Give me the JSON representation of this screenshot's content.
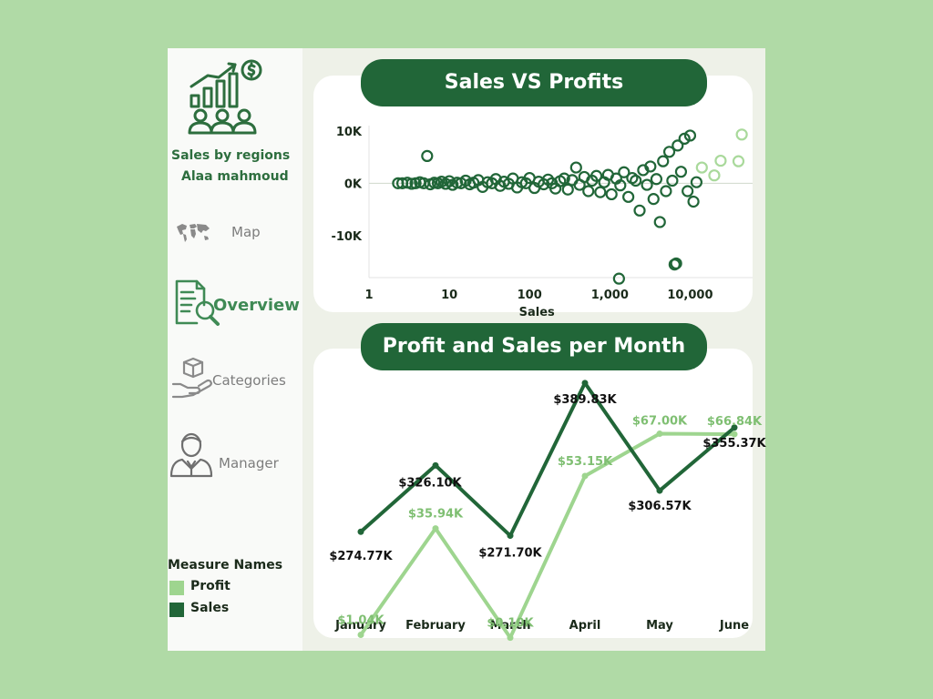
{
  "sidebar": {
    "subtitle": "Sales by regions",
    "author": "Alaa mahmoud",
    "nav": [
      {
        "id": "map",
        "label": "Map",
        "icon": "world-map-icon",
        "active": false
      },
      {
        "id": "overview",
        "label": "Overview",
        "icon": "document-magnifier-icon",
        "active": true
      },
      {
        "id": "categories",
        "label": "Categories",
        "icon": "box-hand-icon",
        "active": false
      },
      {
        "id": "manager",
        "label": "Manager",
        "icon": "person-suit-icon",
        "active": false
      }
    ],
    "legend": {
      "title": "Measure Names",
      "items": [
        {
          "label": "Profit",
          "color": "#9ed58f"
        },
        {
          "label": "Sales",
          "color": "#216638"
        }
      ]
    }
  },
  "colors": {
    "accent": "#216638",
    "profit": "#9ed58f",
    "sales": "#216638",
    "active_nav": "#3f8a55",
    "inactive_nav": "#7d7d7d"
  },
  "scatter": {
    "title": "Sales VS Profits"
  },
  "monthly": {
    "title": "Profit and Sales per Month"
  },
  "chart_data": [
    {
      "type": "scatter",
      "title": "Sales VS Profits",
      "xlabel": "Sales",
      "ylabel": "",
      "x_scale": "log",
      "xlim": [
        1,
        60000
      ],
      "ylim": [
        -18000,
        11000
      ],
      "x_ticks": [
        1,
        10,
        100,
        1000,
        10000
      ],
      "x_tick_labels": [
        "1",
        "10",
        "100",
        "1,000",
        "10,000"
      ],
      "y_ticks": [
        10000,
        0,
        -10000
      ],
      "y_tick_labels": [
        "10K",
        "0K",
        "-10K"
      ],
      "zero_line": true,
      "series": [
        {
          "color": "#216638",
          "points": [
            [
              2.3,
              0
            ],
            [
              2.6,
              0
            ],
            [
              3,
              100
            ],
            [
              3.4,
              -100
            ],
            [
              3.8,
              0
            ],
            [
              4.3,
              200
            ],
            [
              4.8,
              0
            ],
            [
              5.3,
              5200
            ],
            [
              5.8,
              -200
            ],
            [
              6.5,
              100
            ],
            [
              7.2,
              0
            ],
            [
              8,
              300
            ],
            [
              9,
              -100
            ],
            [
              10,
              400
            ],
            [
              11,
              -300
            ],
            [
              12.5,
              100
            ],
            [
              14,
              0
            ],
            [
              16,
              500
            ],
            [
              18,
              -200
            ],
            [
              20,
              100
            ],
            [
              23,
              600
            ],
            [
              26,
              -700
            ],
            [
              30,
              200
            ],
            [
              34,
              0
            ],
            [
              38,
              800
            ],
            [
              43,
              -500
            ],
            [
              48,
              300
            ],
            [
              55,
              -100
            ],
            [
              62,
              900
            ],
            [
              70,
              -800
            ],
            [
              80,
              200
            ],
            [
              90,
              0
            ],
            [
              100,
              1000
            ],
            [
              115,
              -900
            ],
            [
              130,
              300
            ],
            [
              150,
              -200
            ],
            [
              170,
              700
            ],
            [
              190,
              0
            ],
            [
              210,
              -1000
            ],
            [
              240,
              400
            ],
            [
              270,
              900
            ],
            [
              300,
              -1200
            ],
            [
              340,
              600
            ],
            [
              380,
              3000
            ],
            [
              420,
              -300
            ],
            [
              480,
              1200
            ],
            [
              540,
              -1500
            ],
            [
              600,
              500
            ],
            [
              680,
              1400
            ],
            [
              760,
              -1700
            ],
            [
              850,
              200
            ],
            [
              950,
              1600
            ],
            [
              1050,
              -2100
            ],
            [
              1200,
              900
            ],
            [
              1350,
              -400
            ],
            [
              1500,
              2100
            ],
            [
              1700,
              -2600
            ],
            [
              1900,
              1000
            ],
            [
              2100,
              500
            ],
            [
              2350,
              -5200
            ],
            [
              2600,
              2500
            ],
            [
              2900,
              -300
            ],
            [
              3200,
              3200
            ],
            [
              3500,
              -3000
            ],
            [
              3800,
              800
            ],
            [
              4200,
              -7400
            ],
            [
              4600,
              4200
            ],
            [
              5000,
              -1500
            ],
            [
              5500,
              6000
            ],
            [
              6000,
              500
            ],
            [
              6400,
              -15500
            ],
            [
              6700,
              -15300
            ],
            [
              7000,
              7200
            ],
            [
              7700,
              2200
            ],
            [
              8500,
              8500
            ],
            [
              9300,
              -1500
            ],
            [
              10000,
              9100
            ],
            [
              11000,
              -3500
            ],
            [
              12000,
              200
            ]
          ]
        },
        {
          "color": "#a9d99b",
          "points": [
            [
              14000,
              3000
            ],
            [
              20000,
              1500
            ],
            [
              24000,
              4300
            ],
            [
              40000,
              4200
            ],
            [
              44000,
              9300
            ]
          ]
        }
      ],
      "isolated_low_point": [
        1300,
        -18200
      ]
    },
    {
      "type": "line",
      "title": "Profit and Sales per Month",
      "categories": [
        "January",
        "February",
        "March",
        "April",
        "May",
        "June"
      ],
      "series": [
        {
          "name": "Sales",
          "color": "#216638",
          "values": [
            274.77,
            326.1,
            271.7,
            389.83,
            306.57,
            355.37
          ],
          "labels": [
            "$274.77K",
            "$326.10K",
            "$271.70K",
            "$389.83K",
            "$306.57K",
            "$355.37K"
          ]
        },
        {
          "name": "Profit",
          "color": "#9ed58f",
          "values": [
            1.04,
            35.94,
            0.1,
            53.15,
            67.0,
            66.84
          ],
          "labels": [
            "$1.04K",
            "$35.94K",
            "$0.10K",
            "$53.15K",
            "$67.00K",
            "$66.84K"
          ]
        }
      ]
    }
  ]
}
